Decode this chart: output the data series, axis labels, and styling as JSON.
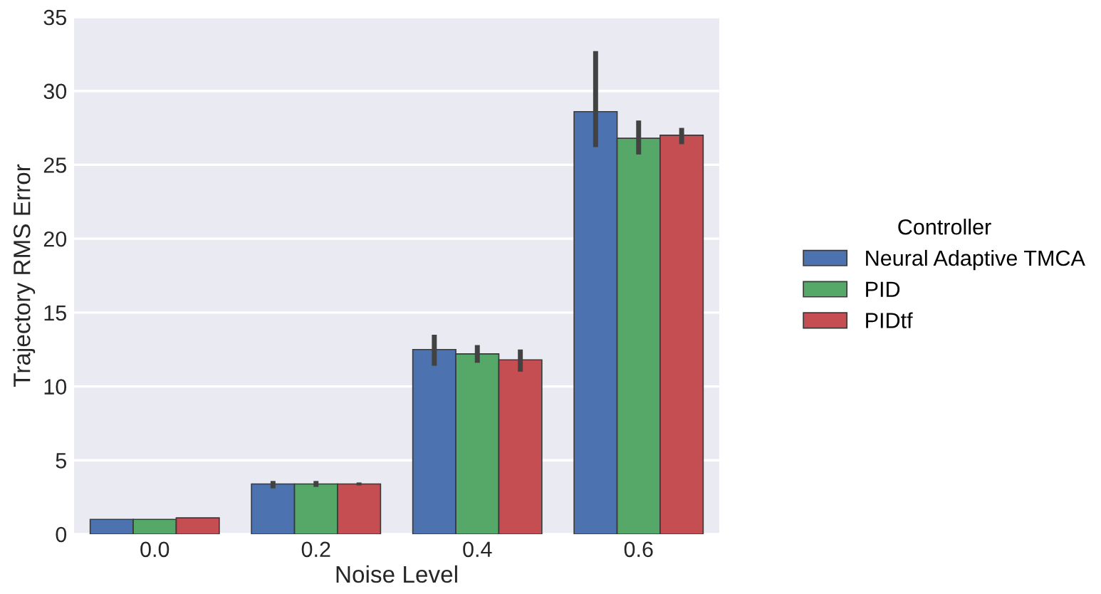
{
  "chart_data": {
    "type": "bar",
    "xlabel": "Noise Level",
    "ylabel": "Trajectory RMS Error",
    "legend_title": "Controller",
    "categories": [
      "0.0",
      "0.2",
      "0.4",
      "0.6"
    ],
    "series": [
      {
        "name": "Neural Adaptive TMCA",
        "color": "#4c72b0",
        "values": [
          1.0,
          3.4,
          12.5,
          28.6
        ],
        "errors": [
          null,
          [
            3.1,
            3.6
          ],
          [
            11.4,
            13.5
          ],
          [
            26.2,
            32.7
          ]
        ]
      },
      {
        "name": "PID",
        "color": "#55a868",
        "values": [
          1.0,
          3.4,
          12.2,
          26.8
        ],
        "errors": [
          null,
          [
            3.2,
            3.6
          ],
          [
            11.6,
            12.8
          ],
          [
            25.7,
            28.0
          ]
        ]
      },
      {
        "name": "PIDtf",
        "color": "#c44e52",
        "values": [
          1.1,
          3.4,
          11.8,
          27.0
        ],
        "errors": [
          null,
          [
            3.3,
            3.5
          ],
          [
            11.0,
            12.5
          ],
          [
            26.4,
            27.5
          ]
        ]
      }
    ],
    "ylim": [
      0,
      35
    ],
    "yticks": [
      0,
      5,
      10,
      15,
      20,
      25,
      30,
      35
    ],
    "grid": "y",
    "legend": "right"
  }
}
